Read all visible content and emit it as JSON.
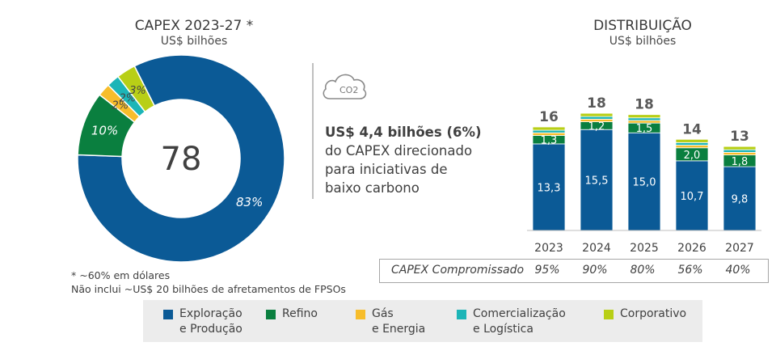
{
  "left": {
    "title": "CAPEX 2023-27 *",
    "subtitle": "US$ bilhões",
    "center_value": "78"
  },
  "right": {
    "title": "DISTRIBUIÇÃO",
    "subtitle": "US$ bilhões"
  },
  "highlight": {
    "bold": "US$ 4,4 bilhões (6%)",
    "line2": "do CAPEX direcionado",
    "line3": "para iniciativas de",
    "line4": "baixo carbono"
  },
  "icon": {
    "name": "co2-cloud-icon",
    "label": "CO2"
  },
  "notes": {
    "line1": "* ~60% em dólares",
    "line2": "Não inclui ~US$ 20 bilhões de afretamentos de FPSOs"
  },
  "committed": {
    "label": "CAPEX Compromissado",
    "values": [
      "95%",
      "90%",
      "80%",
      "56%",
      "40%"
    ]
  },
  "colors": {
    "ep": "#0b5a96",
    "refino": "#0a7f3f",
    "gas": "#f7bd2b",
    "comerc": "#1cb5b7",
    "corp": "#b8cf16"
  },
  "legend": [
    {
      "label": "Exploração\ne Produção",
      "color": "#0b5a96"
    },
    {
      "label": "Refino",
      "color": "#0a7f3f"
    },
    {
      "label": "Gás\ne Energia",
      "color": "#f7bd2b"
    },
    {
      "label": "Comercialização\ne Logística",
      "color": "#1cb5b7"
    },
    {
      "label": "Corporativo",
      "color": "#b8cf16"
    }
  ],
  "chart_data": [
    {
      "type": "pie",
      "title": "CAPEX 2023-27 *",
      "subtitle": "US$ bilhões",
      "center_label": "78",
      "categories": [
        "Exploração e Produção",
        "Refino",
        "Gás e Energia",
        "Comercialização e Logística",
        "Corporativo"
      ],
      "values": [
        83,
        10,
        2,
        2,
        3
      ],
      "labels": [
        "83%",
        "10%",
        "2%",
        "2%",
        "3%"
      ]
    },
    {
      "type": "bar",
      "stacked": true,
      "title": "DISTRIBUIÇÃO",
      "subtitle": "US$ bilhões",
      "categories": [
        "2023",
        "2024",
        "2025",
        "2026",
        "2027"
      ],
      "totals": [
        16,
        18,
        18,
        14,
        13
      ],
      "series": [
        {
          "name": "Exploração e Produção",
          "values": [
            13.3,
            15.5,
            15.0,
            10.7,
            9.8
          ],
          "labels": [
            "13,3",
            "15,5",
            "15,0",
            "10,7",
            "9,8"
          ]
        },
        {
          "name": "Refino",
          "values": [
            1.3,
            1.2,
            1.5,
            2.0,
            1.8
          ],
          "labels": [
            "1,3",
            "1,2",
            "1,5",
            "2,0",
            "1,8"
          ]
        },
        {
          "name": "Gás e Energia",
          "values": [
            0.4,
            0.4,
            0.4,
            0.4,
            0.4
          ]
        },
        {
          "name": "Comercialização e Logística",
          "values": [
            0.4,
            0.4,
            0.4,
            0.4,
            0.4
          ]
        },
        {
          "name": "Corporativo",
          "values": [
            0.5,
            0.5,
            0.5,
            0.5,
            0.5
          ]
        }
      ]
    }
  ]
}
